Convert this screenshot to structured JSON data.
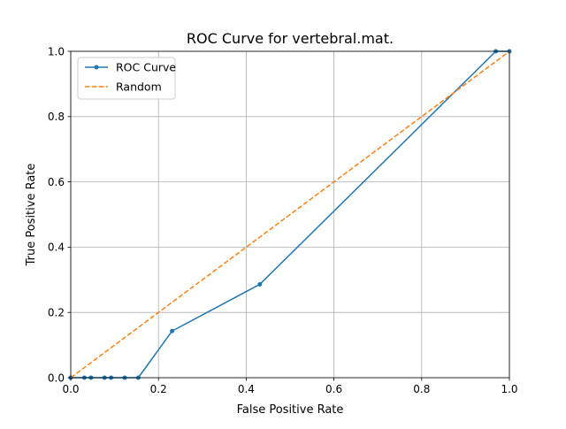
{
  "chart_data": {
    "type": "line",
    "title": "ROC Curve for vertebral.mat.",
    "xlabel": "False Positive Rate",
    "ylabel": "True Positive Rate",
    "xlim": [
      0,
      1
    ],
    "ylim": [
      0,
      1
    ],
    "xticks": [
      "0.0",
      "0.2",
      "0.4",
      "0.6",
      "0.8",
      "1.0"
    ],
    "yticks": [
      "0.0",
      "0.2",
      "0.4",
      "0.6",
      "0.8",
      "1.0"
    ],
    "grid": true,
    "legend_position": "upper-left",
    "series": [
      {
        "name": "ROC Curve",
        "color": "#1f77b4",
        "style": "solid-with-dot-markers",
        "x": [
          0.0,
          0.031,
          0.046,
          0.077,
          0.092,
          0.123,
          0.154,
          0.231,
          0.431,
          0.969,
          1.0
        ],
        "y": [
          0.0,
          0.0,
          0.0,
          0.0,
          0.0,
          0.0,
          0.0,
          0.143,
          0.286,
          1.0,
          1.0
        ]
      },
      {
        "name": "Random",
        "color": "#ff7f0e",
        "style": "dashed",
        "x": [
          0,
          1
        ],
        "y": [
          0,
          1
        ]
      }
    ]
  }
}
